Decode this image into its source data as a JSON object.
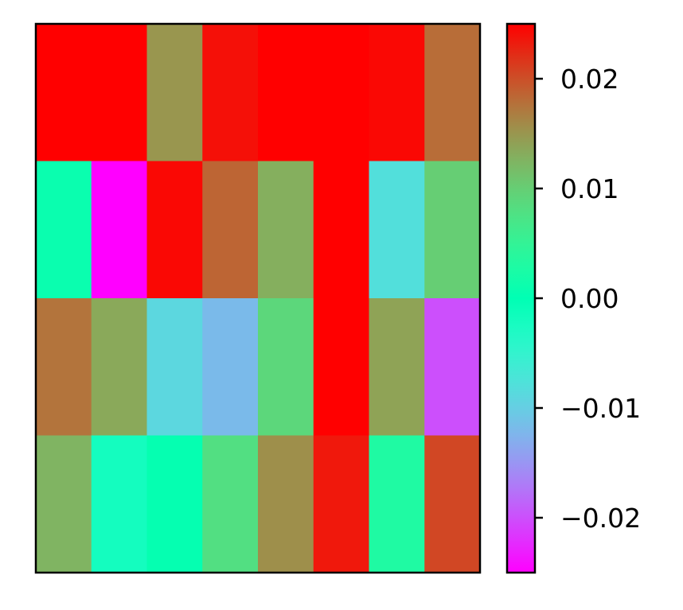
{
  "chart_data": {
    "type": "heatmap",
    "title": "",
    "xlabel": "",
    "ylabel": "",
    "rows": 4,
    "cols": 8,
    "values": [
      [
        0.0255,
        0.0255,
        0.015,
        0.024,
        0.0252,
        0.0255,
        0.0245,
        0.018
      ],
      [
        0.001,
        -0.025,
        0.0245,
        0.0185,
        0.013,
        0.0255,
        -0.008,
        0.01
      ],
      [
        0.0175,
        0.0135,
        -0.009,
        -0.012,
        0.009,
        0.0255,
        0.014,
        -0.02
      ],
      [
        0.0125,
        -0.002,
        0.0005,
        0.008,
        0.0155,
        0.0235,
        0.003,
        0.0205
      ]
    ],
    "colormap": "rainbow",
    "vmin": -0.025,
    "vmax": 0.025,
    "colorbar": {
      "ticks": [
        0.02,
        0.01,
        0.0,
        -0.01,
        -0.02
      ],
      "tick_labels": [
        "0.02",
        "0.01",
        "0.00",
        "−0.01",
        "−0.02"
      ]
    },
    "axes_ticks_visible": false
  }
}
